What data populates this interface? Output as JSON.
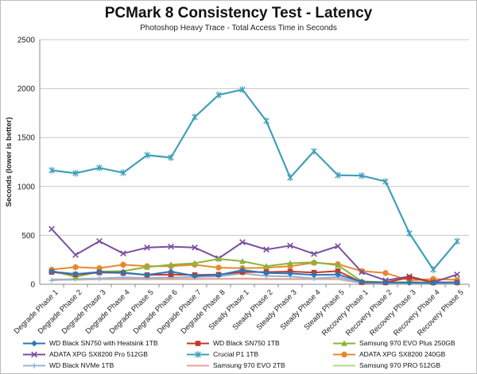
{
  "chart_data": {
    "type": "line",
    "title": "PCMark 8 Consistency Test - Latency",
    "subtitle": "Photoshop Heavy Trace - Total Access Time in Seconds",
    "xlabel": "",
    "ylabel": "Seconds (lower is better)",
    "ylim": [
      0,
      2500
    ],
    "yticks": [
      0,
      500,
      1000,
      1500,
      2000,
      2500
    ],
    "grid": true,
    "legend_position": "bottom",
    "categories": [
      "Degrade Phase 1",
      "Degrade Phase 2",
      "Degrade Phase 3",
      "Degrade Phase 4",
      "Degrade Phase 5",
      "Degrade Phase 6",
      "Degrade Phase 7",
      "Degrade Phase 8",
      "Steady Phase 1",
      "Steady Phase 2",
      "Steady Phase 3",
      "Steady Phase 4",
      "Steady Phase 5",
      "Recovery Phase 1",
      "Recovery Phase 2",
      "Recovery Phase 3",
      "Recovery Phase 4",
      "Recovery Phase 5"
    ],
    "series": [
      {
        "name": "WD Black SN750 with Heatsink 1TB",
        "color": "#2e75b6",
        "marker": "diamond",
        "values": [
          130,
          105,
          125,
          120,
          95,
          130,
          85,
          95,
          145,
          115,
          110,
          95,
          100,
          25,
          18,
          16,
          15,
          18
        ]
      },
      {
        "name": "WD Black SN750 1TB",
        "color": "#c0392b",
        "marker": "square",
        "values": [
          125,
          100,
          120,
          115,
          95,
          100,
          95,
          100,
          125,
          125,
          130,
          120,
          135,
          20,
          18,
          70,
          20,
          18
        ]
      },
      {
        "name": "Samsung 970 EVO Plus 250GB",
        "color": "#8db33b",
        "marker": "triangle",
        "values": [
          140,
          75,
          130,
          135,
          175,
          200,
          215,
          260,
          235,
          185,
          215,
          225,
          195,
          30,
          20,
          22,
          18,
          20
        ]
      },
      {
        "name": "ADATA XPG SX8200 Pro 512GB",
        "color": "#7b4e9e",
        "marker": "x",
        "values": [
          565,
          300,
          440,
          315,
          375,
          385,
          375,
          265,
          430,
          355,
          395,
          310,
          390,
          125,
          40,
          80,
          20,
          100
        ]
      },
      {
        "name": "Crucial P1 1TB",
        "color": "#3fa0b8",
        "marker": "star",
        "values": [
          1165,
          1135,
          1190,
          1140,
          1320,
          1295,
          1710,
          1935,
          1990,
          1670,
          1090,
          1360,
          1115,
          1110,
          1050,
          520,
          150,
          440
        ]
      },
      {
        "name": "ADATA XPG SX8200 240GB",
        "color": "#e6892e",
        "marker": "circle",
        "values": [
          150,
          175,
          165,
          200,
          185,
          185,
          200,
          170,
          165,
          170,
          185,
          220,
          205,
          135,
          115,
          40,
          55,
          45
        ]
      },
      {
        "name": "WD Black NVMe 1TB",
        "color": "#95b3d7",
        "marker": "plus",
        "values": [
          40,
          55,
          60,
          70,
          65,
          70,
          75,
          80,
          110,
          85,
          80,
          60,
          75,
          15,
          12,
          10,
          10,
          12
        ]
      },
      {
        "name": "Samsung 970 EVO 2TB",
        "color": "#e6a0a0",
        "marker": "none",
        "values": [
          50,
          50,
          55,
          55,
          55,
          55,
          55,
          55,
          60,
          55,
          55,
          55,
          55,
          15,
          12,
          12,
          12,
          12
        ]
      },
      {
        "name": "Samsung 970 PRO 512GB",
        "color": "#b8d68a",
        "marker": "none",
        "values": [
          45,
          45,
          50,
          50,
          50,
          50,
          50,
          55,
          55,
          50,
          50,
          50,
          50,
          12,
          10,
          10,
          10,
          10
        ]
      }
    ]
  }
}
